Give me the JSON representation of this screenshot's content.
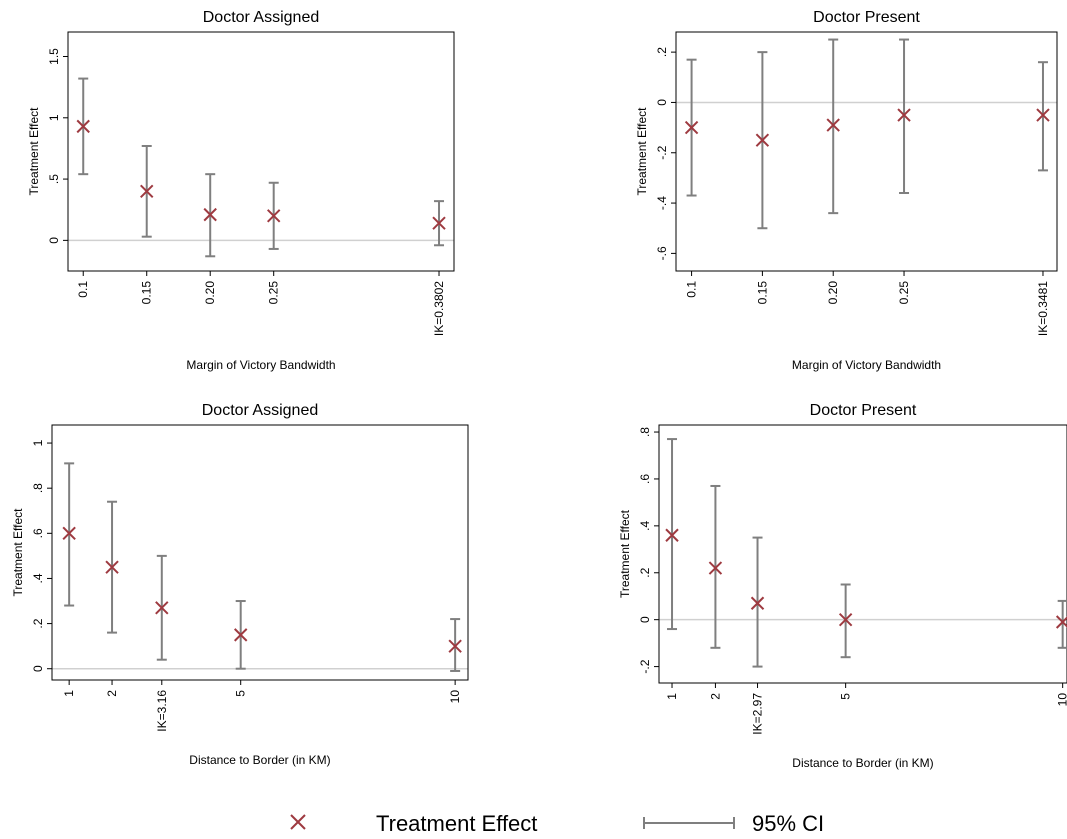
{
  "colors": {
    "marker": "#9e3a40",
    "ci": "#7f7f7f",
    "zero_line": "#d0d0d0",
    "axis": "#000000"
  },
  "legend": {
    "point_label": "Treatment Effect",
    "ci_label": "95% CI"
  },
  "chart_data": [
    {
      "type": "scatter",
      "title": "Doctor Assigned",
      "xlabel": "Margin of Victory Bandwidth",
      "ylabel": "Treatment Effect",
      "x": [
        0.1,
        0.15,
        0.2,
        0.25,
        0.3802
      ],
      "x_tick_labels": [
        "0.1",
        "0.15",
        "0.20",
        "0.25",
        "IK=0.3802"
      ],
      "values": [
        0.93,
        0.4,
        0.21,
        0.2,
        0.14
      ],
      "ci_low": [
        0.54,
        0.03,
        -0.13,
        -0.07,
        -0.04
      ],
      "ci_high": [
        1.32,
        0.77,
        0.54,
        0.47,
        0.32
      ],
      "xlim": [
        0.088,
        0.392
      ],
      "ylim": [
        -0.25,
        1.7
      ],
      "y_ticks": [
        0,
        0.5,
        1,
        1.5
      ],
      "y_tick_labels": [
        "0",
        ".5",
        "1",
        "1.5"
      ],
      "reference_line": 0,
      "grid": false
    },
    {
      "type": "scatter",
      "title": "Doctor Present",
      "xlabel": "Margin of Victory Bandwidth",
      "ylabel": "Treatment Effect",
      "x": [
        0.1,
        0.15,
        0.2,
        0.25,
        0.3481
      ],
      "x_tick_labels": [
        "0.1",
        "0.15",
        "0.20",
        "0.25",
        "IK=0.3481"
      ],
      "values": [
        -0.1,
        -0.15,
        -0.09,
        -0.05,
        -0.05
      ],
      "ci_low": [
        -0.37,
        -0.5,
        -0.44,
        -0.36,
        -0.27
      ],
      "ci_high": [
        0.17,
        0.2,
        0.25,
        0.25,
        0.16
      ],
      "xlim": [
        0.089,
        0.358
      ],
      "ylim": [
        -0.67,
        0.28
      ],
      "y_ticks": [
        -0.6,
        -0.4,
        -0.2,
        0,
        0.2
      ],
      "y_tick_labels": [
        "-.6",
        "-.4",
        "-.2",
        "0",
        ".2"
      ],
      "reference_line": 0,
      "grid": false
    },
    {
      "type": "scatter",
      "title": "Doctor Assigned",
      "xlabel": "Distance to Border (in KM)",
      "ylabel": "Treatment Effect",
      "x": [
        1,
        2,
        3.16,
        5,
        10
      ],
      "x_tick_labels": [
        "1",
        "2",
        "IK=3.16",
        "5",
        "10"
      ],
      "values": [
        0.6,
        0.45,
        0.27,
        0.15,
        0.1
      ],
      "ci_low": [
        0.28,
        0.16,
        0.04,
        0.0,
        -0.01
      ],
      "ci_high": [
        0.91,
        0.74,
        0.5,
        0.3,
        0.22
      ],
      "xlim": [
        0.6,
        10.3
      ],
      "ylim": [
        -0.05,
        1.08
      ],
      "y_ticks": [
        0,
        0.2,
        0.4,
        0.6,
        0.8,
        1
      ],
      "y_tick_labels": [
        "0",
        ".2",
        ".4",
        ".6",
        ".8",
        "1"
      ],
      "reference_line": 0,
      "grid": false
    },
    {
      "type": "scatter",
      "title": "Doctor Present",
      "xlabel": "Distance to Border (in KM)",
      "ylabel": "Treatment Effect",
      "x": [
        1,
        2,
        2.97,
        5,
        10
      ],
      "x_tick_labels": [
        "1",
        "2",
        "IK=2.97",
        "5",
        "10"
      ],
      "values": [
        0.36,
        0.22,
        0.07,
        0.0,
        -0.01
      ],
      "ci_low": [
        -0.04,
        -0.12,
        -0.2,
        -0.16,
        -0.12
      ],
      "ci_high": [
        0.77,
        0.57,
        0.35,
        0.15,
        0.08
      ],
      "xlim": [
        0.7,
        10.1
      ],
      "ylim": [
        -0.27,
        0.83
      ],
      "y_ticks": [
        -0.2,
        0,
        0.2,
        0.4,
        0.6,
        0.8
      ],
      "y_tick_labels": [
        "-.2",
        "0",
        ".2",
        ".4",
        ".6",
        ".8"
      ],
      "reference_line": 0,
      "grid": false
    }
  ]
}
